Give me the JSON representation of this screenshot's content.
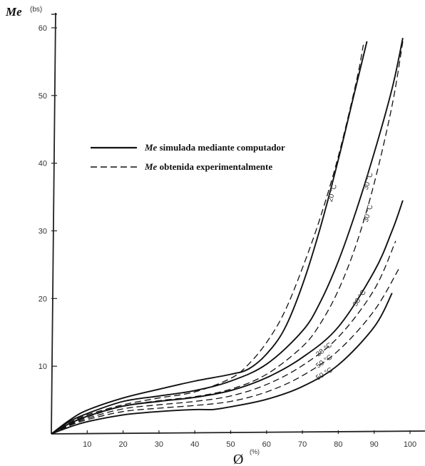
{
  "chart_data": {
    "type": "line",
    "ylabel": "Me",
    "ylabel_unit": "(bs)",
    "xlabel": "Ø",
    "xlabel_unit": "(%)",
    "xlim": [
      0,
      100
    ],
    "ylim": [
      0,
      62
    ],
    "x_ticks": [
      10,
      20,
      30,
      40,
      50,
      60,
      70,
      80,
      90,
      100
    ],
    "y_ticks": [
      10,
      20,
      30,
      40,
      50,
      60
    ],
    "grid": false,
    "legend_position": "upper-left",
    "legend": [
      {
        "style": "solid",
        "label_prefix": "Me",
        "label": " simulada mediante computador"
      },
      {
        "style": "dashed",
        "label_prefix": "Me",
        "label": " obtenida experimentalmente"
      }
    ],
    "series": [
      {
        "name": "20 °C",
        "style": "solid",
        "label": "20 °C",
        "x": [
          0,
          5,
          10,
          20,
          30,
          40,
          50,
          55,
          60,
          65,
          70,
          75,
          80,
          85,
          88
        ],
        "y": [
          0,
          2.0,
          3.5,
          5.3,
          6.6,
          7.8,
          8.8,
          9.6,
          11.8,
          15.5,
          22,
          30.5,
          40.5,
          51.5,
          58
        ]
      },
      {
        "name": "20 °C",
        "style": "dashed",
        "label": "",
        "x": [
          0,
          5,
          10,
          20,
          30,
          40,
          50,
          55,
          60,
          65,
          70,
          75,
          80,
          85,
          87
        ],
        "y": [
          0,
          1.6,
          2.8,
          4.3,
          5.3,
          6.2,
          8.2,
          10.3,
          13.5,
          18,
          24.5,
          32,
          41,
          52,
          57.5
        ]
      },
      {
        "name": "30 °C",
        "style": "solid",
        "label": "30 °C",
        "x": [
          0,
          5,
          10,
          20,
          30,
          40,
          50,
          60,
          70,
          75,
          80,
          85,
          90,
          95,
          98
        ],
        "y": [
          0,
          1.8,
          3.0,
          4.8,
          5.6,
          6.4,
          7.8,
          10.3,
          15.2,
          19.5,
          25.5,
          33,
          41.5,
          51,
          58.5
        ]
      },
      {
        "name": "30 °C",
        "style": "dashed",
        "label": "30 °C",
        "x": [
          0,
          5,
          10,
          20,
          30,
          40,
          50,
          60,
          70,
          75,
          80,
          85,
          90,
          95,
          98
        ],
        "y": [
          0,
          1.4,
          2.5,
          4.1,
          4.9,
          5.5,
          6.6,
          8.8,
          12.9,
          16.3,
          21.2,
          28,
          37,
          48.5,
          58
        ]
      },
      {
        "name": "38 °C",
        "style": "solid",
        "label": "38 °C",
        "x": [
          0,
          5,
          10,
          20,
          30,
          40,
          50,
          60,
          70,
          80,
          90,
          95,
          98
        ],
        "y": [
          0,
          1.5,
          2.6,
          4.1,
          4.8,
          5.4,
          6.4,
          8.3,
          11.3,
          15.8,
          24,
          30,
          34.5
        ]
      },
      {
        "name": "38 °C",
        "style": "dashed",
        "label": "38 °C",
        "x": [
          0,
          5,
          10,
          20,
          30,
          40,
          50,
          60,
          70,
          80,
          90,
          96
        ],
        "y": [
          0,
          1.3,
          2.3,
          3.7,
          4.3,
          4.8,
          5.6,
          7.3,
          10.1,
          14.3,
          21.3,
          28.5
        ]
      },
      {
        "name": "50 °C",
        "style": "dashed",
        "label": "50 °C",
        "x": [
          0,
          5,
          10,
          20,
          30,
          40,
          50,
          60,
          70,
          80,
          90,
          97
        ],
        "y": [
          0,
          1.2,
          2.1,
          3.3,
          3.8,
          4.2,
          4.8,
          6.2,
          8.6,
          12.3,
          18.2,
          24.5
        ]
      },
      {
        "name": "50 °C",
        "style": "solid",
        "label": "50 °C",
        "x": [
          0,
          5,
          10,
          20,
          30,
          40,
          45,
          50,
          60,
          70,
          80,
          90,
          95
        ],
        "y": [
          0,
          1.0,
          1.8,
          2.8,
          3.3,
          3.6,
          3.6,
          4.0,
          5.1,
          7.0,
          10.2,
          15.8,
          20.8
        ]
      }
    ]
  }
}
